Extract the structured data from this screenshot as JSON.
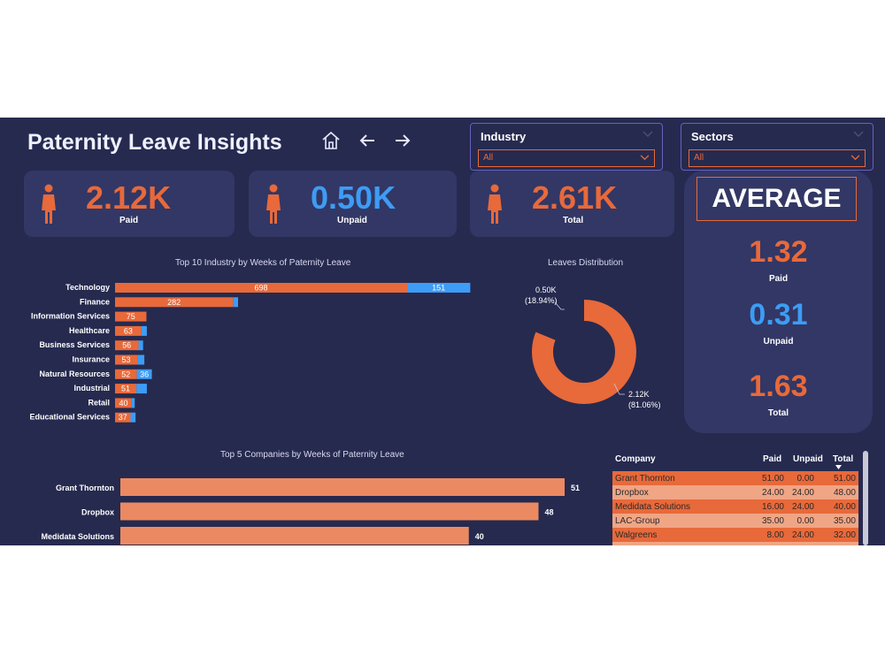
{
  "header": {
    "title": "Paternity Leave Insights"
  },
  "nav": {
    "icons": [
      "home-icon",
      "back-arrow-icon",
      "forward-arrow-icon"
    ]
  },
  "slicers": [
    {
      "label": "Industry",
      "value": "All"
    },
    {
      "label": "Sectors",
      "value": "All"
    }
  ],
  "kpis": [
    {
      "value": "2.12K",
      "label": "Paid",
      "color": "#e8693a"
    },
    {
      "value": "0.50K",
      "label": "Unpaid",
      "color": "#3d9cf5"
    },
    {
      "value": "2.61K",
      "label": "Total",
      "color": "#e8693a"
    }
  ],
  "average": {
    "title": "AVERAGE",
    "items": [
      {
        "value": "1.32",
        "label": "Paid",
        "color": "#e8693a"
      },
      {
        "value": "0.31",
        "label": "Unpaid",
        "color": "#3d9cf5"
      },
      {
        "value": "1.63",
        "label": "Total",
        "color": "#e8693a"
      }
    ]
  },
  "colors": {
    "paid": "#e8693a",
    "unpaid": "#3d9cf5",
    "company_bar": "#eb8a62",
    "background": "#262a4f",
    "card": "#323765"
  },
  "chart_data": [
    {
      "type": "bar",
      "orientation": "horizontal",
      "stacked": true,
      "title": "Top 10 Industry by Weeks of Paternity Leave",
      "categories": [
        "Technology",
        "Finance",
        "Information Services",
        "Healthcare",
        "Business Services",
        "Insurance",
        "Natural Resources",
        "Industrial",
        "Retail",
        "Educational Services"
      ],
      "series": [
        {
          "values": [
            698,
            282,
            75,
            63,
            56,
            53,
            52,
            51,
            40,
            37
          ],
          "labels": [
            "698",
            "282",
            "75",
            "63",
            "56",
            "53",
            "52",
            "51",
            "40",
            "37"
          ],
          "color": "#e8693a"
        },
        {
          "values": [
            151,
            12,
            0,
            13,
            11,
            17,
            36,
            25,
            7,
            12
          ],
          "labels": [
            "151",
            "",
            "",
            "",
            "",
            "",
            "36",
            "",
            "",
            ""
          ],
          "color": "#3d9cf5"
        }
      ]
    },
    {
      "type": "pie",
      "donut": true,
      "title": "Leaves Distribution",
      "slices": [
        {
          "value": 0.5,
          "share": 18.94,
          "label": "0.50K",
          "pct_label": "(18.94%)",
          "color": "#3d9cf5"
        },
        {
          "value": 2.12,
          "share": 81.06,
          "label": "2.12K",
          "pct_label": "(81.06%)",
          "color": "#e8693a"
        }
      ]
    },
    {
      "type": "bar",
      "orientation": "horizontal",
      "title": "Top 5 Companies by Weeks of Paternity Leave",
      "categories": [
        "Grant Thornton",
        "Dropbox",
        "Medidata Solutions"
      ],
      "values": [
        51,
        48,
        40
      ],
      "labels": [
        "51",
        "48",
        "40"
      ],
      "color": "#eb8a62"
    }
  ],
  "table": {
    "columns": [
      "Company",
      "Paid",
      "Unpaid",
      "Total"
    ],
    "rows": [
      [
        "Grant Thornton",
        "51.00",
        "0.00",
        "51.00"
      ],
      [
        "Dropbox",
        "24.00",
        "24.00",
        "48.00"
      ],
      [
        "Medidata Solutions",
        "16.00",
        "24.00",
        "40.00"
      ],
      [
        "LAC-Group",
        "35.00",
        "0.00",
        "35.00"
      ],
      [
        "Walgreens",
        "8.00",
        "24.00",
        "32.00"
      ]
    ],
    "row_colors": [
      "#e8693a",
      "#f0a585",
      "#e8693a",
      "#f0a585",
      "#e8693a"
    ]
  }
}
